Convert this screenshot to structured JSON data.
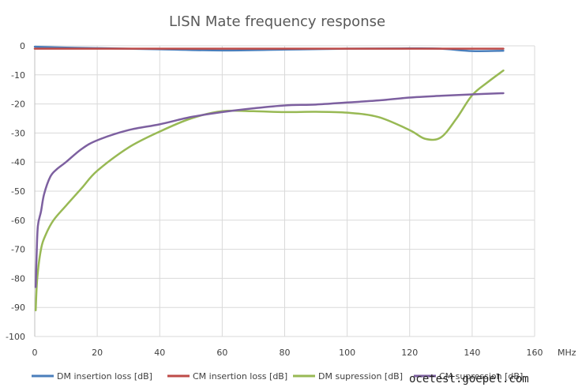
{
  "chart_data": {
    "type": "line",
    "title": "LISN Mate frequency response",
    "xlabel": "MHz",
    "ylabel": "",
    "xlim": [
      0,
      160
    ],
    "ylim": [
      -100,
      0
    ],
    "x_ticks": [
      0,
      20,
      40,
      60,
      80,
      100,
      120,
      140,
      160
    ],
    "y_ticks": [
      0,
      -10,
      -20,
      -30,
      -40,
      -50,
      -60,
      -70,
      -80,
      -90,
      -100
    ],
    "grid": true,
    "legend_position": "bottom",
    "series": [
      {
        "name": "DM insertion loss [dB]",
        "color": "#4a7ebb",
        "points": [
          [
            0,
            -0.3
          ],
          [
            10,
            -0.6
          ],
          [
            20,
            -0.8
          ],
          [
            40,
            -1.2
          ],
          [
            60,
            -1.6
          ],
          [
            80,
            -1.3
          ],
          [
            100,
            -1.0
          ],
          [
            120,
            -0.9
          ],
          [
            130,
            -1.0
          ],
          [
            140,
            -1.8
          ],
          [
            150,
            -1.7
          ]
        ]
      },
      {
        "name": "CM insertion loss [dB]",
        "color": "#be4b48",
        "points": [
          [
            0,
            -1.0
          ],
          [
            20,
            -1.0
          ],
          [
            40,
            -1.0
          ],
          [
            60,
            -1.0
          ],
          [
            80,
            -1.0
          ],
          [
            100,
            -1.0
          ],
          [
            120,
            -1.0
          ],
          [
            140,
            -1.0
          ],
          [
            150,
            -1.0
          ]
        ]
      },
      {
        "name": "DM supression [dB]",
        "color": "#98b954",
        "points": [
          [
            0.3,
            -91
          ],
          [
            0.8,
            -80
          ],
          [
            2,
            -70
          ],
          [
            3.5,
            -65
          ],
          [
            6,
            -60
          ],
          [
            10,
            -55
          ],
          [
            15,
            -49
          ],
          [
            20,
            -43
          ],
          [
            30,
            -35
          ],
          [
            40,
            -29.5
          ],
          [
            50,
            -25
          ],
          [
            60,
            -22.5
          ],
          [
            70,
            -22.5
          ],
          [
            80,
            -22.8
          ],
          [
            90,
            -22.7
          ],
          [
            100,
            -23
          ],
          [
            110,
            -24.5
          ],
          [
            120,
            -29
          ],
          [
            125,
            -32
          ],
          [
            130,
            -31.5
          ],
          [
            135,
            -25
          ],
          [
            140,
            -17
          ],
          [
            145,
            -12.5
          ],
          [
            150,
            -8.5
          ]
        ]
      },
      {
        "name": "CM supression [dB]",
        "color": "#7d60a0",
        "points": [
          [
            0.3,
            -83
          ],
          [
            0.6,
            -72
          ],
          [
            1,
            -62
          ],
          [
            2,
            -57
          ],
          [
            3,
            -51
          ],
          [
            5,
            -45
          ],
          [
            7,
            -42.5
          ],
          [
            10,
            -40
          ],
          [
            15,
            -35.5
          ],
          [
            20,
            -32.5
          ],
          [
            30,
            -29
          ],
          [
            40,
            -27
          ],
          [
            50,
            -24.5
          ],
          [
            60,
            -22.8
          ],
          [
            70,
            -21.5
          ],
          [
            80,
            -20.5
          ],
          [
            90,
            -20.2
          ],
          [
            100,
            -19.5
          ],
          [
            110,
            -18.8
          ],
          [
            120,
            -17.8
          ],
          [
            130,
            -17.2
          ],
          [
            140,
            -16.7
          ],
          [
            150,
            -16.3
          ]
        ]
      }
    ]
  },
  "watermark": "ocetest.goepel.com"
}
